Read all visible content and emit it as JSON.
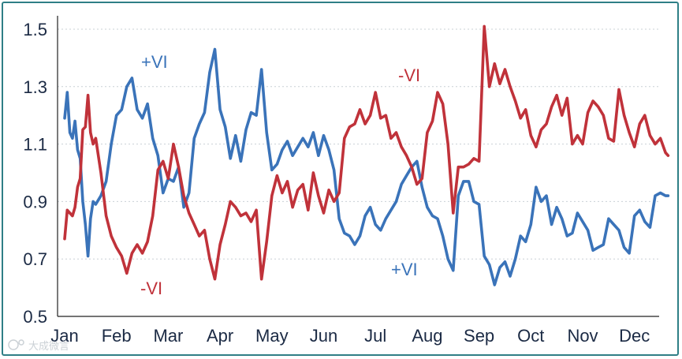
{
  "chart_data": {
    "type": "line",
    "title": "",
    "xlabel": "",
    "ylabel": "",
    "ylim": [
      0.5,
      1.5
    ],
    "yticks": [
      "1.5",
      "1.3",
      "1.1",
      "0.9",
      "0.7",
      "0.5"
    ],
    "ytick_values": [
      1.5,
      1.3,
      1.1,
      0.9,
      0.7,
      0.5
    ],
    "categories": [
      "Jan",
      "Feb",
      "Mar",
      "Apr",
      "May",
      "Jun",
      "Jul",
      "Aug",
      "Sep",
      "Oct",
      "Nov",
      "Dec"
    ],
    "grid": "horizontal dotted",
    "series": [
      {
        "name": "+VI",
        "color": "#3a73b9",
        "x": [
          0,
          0.05,
          0.1,
          0.15,
          0.2,
          0.25,
          0.3,
          0.35,
          0.4,
          0.45,
          0.5,
          0.55,
          0.6,
          0.7,
          0.8,
          0.9,
          1.0,
          1.1,
          1.2,
          1.3,
          1.4,
          1.5,
          1.6,
          1.7,
          1.8,
          1.9,
          2.0,
          2.1,
          2.2,
          2.3,
          2.4,
          2.5,
          2.6,
          2.7,
          2.8,
          2.9,
          3.0,
          3.1,
          3.2,
          3.3,
          3.4,
          3.5,
          3.6,
          3.7,
          3.8,
          3.9,
          4.0,
          4.1,
          4.2,
          4.3,
          4.4,
          4.5,
          4.6,
          4.7,
          4.8,
          4.9,
          5.0,
          5.1,
          5.2,
          5.3,
          5.4,
          5.5,
          5.6,
          5.7,
          5.8,
          5.9,
          6.0,
          6.1,
          6.2,
          6.3,
          6.4,
          6.5,
          6.6,
          6.7,
          6.8,
          6.9,
          7.0,
          7.1,
          7.2,
          7.3,
          7.4,
          7.5,
          7.6,
          7.7,
          7.8,
          7.9,
          8.0,
          8.1,
          8.2,
          8.3,
          8.4,
          8.5,
          8.6,
          8.7,
          8.8,
          8.9,
          9.0,
          9.1,
          9.2,
          9.3,
          9.4,
          9.5,
          9.6,
          9.7,
          9.8,
          9.9,
          10.0,
          10.1,
          10.2,
          10.3,
          10.4,
          10.5,
          10.6,
          10.7,
          10.8,
          10.9,
          11.0,
          11.1,
          11.2,
          11.3,
          11.4,
          11.5,
          11.6,
          11.65
        ],
        "values": [
          1.19,
          1.28,
          1.14,
          1.12,
          1.18,
          1.08,
          1.05,
          0.9,
          0.82,
          0.71,
          0.84,
          0.9,
          0.89,
          0.92,
          0.97,
          1.1,
          1.2,
          1.22,
          1.3,
          1.33,
          1.22,
          1.19,
          1.24,
          1.12,
          1.06,
          0.93,
          0.98,
          0.97,
          1.02,
          0.88,
          0.93,
          1.12,
          1.17,
          1.21,
          1.35,
          1.43,
          1.22,
          1.16,
          1.05,
          1.13,
          1.04,
          1.15,
          1.21,
          1.2,
          1.36,
          1.14,
          1.01,
          1.03,
          1.08,
          1.11,
          1.06,
          1.09,
          1.12,
          1.09,
          1.14,
          1.06,
          1.13,
          1.08,
          1.01,
          0.84,
          0.79,
          0.78,
          0.75,
          0.78,
          0.85,
          0.88,
          0.82,
          0.8,
          0.84,
          0.87,
          0.9,
          0.96,
          0.99,
          1.02,
          1.04,
          0.95,
          0.88,
          0.85,
          0.84,
          0.78,
          0.7,
          0.66,
          0.92,
          0.97,
          0.97,
          0.9,
          0.89,
          0.71,
          0.68,
          0.61,
          0.67,
          0.69,
          0.64,
          0.7,
          0.78,
          0.76,
          0.82,
          0.95,
          0.9,
          0.92,
          0.82,
          0.88,
          0.84,
          0.78,
          0.79,
          0.86,
          0.83,
          0.8,
          0.73,
          0.74,
          0.75,
          0.84,
          0.82,
          0.8,
          0.74,
          0.72,
          0.85,
          0.87,
          0.83,
          0.81,
          0.92,
          0.93,
          0.92,
          0.92
        ],
        "label_positions": [
          "Mar peak",
          "Aug trough"
        ]
      },
      {
        "name": "-VI",
        "color": "#c0323a",
        "x": [
          0,
          0.05,
          0.1,
          0.15,
          0.2,
          0.25,
          0.3,
          0.35,
          0.4,
          0.45,
          0.5,
          0.55,
          0.6,
          0.7,
          0.8,
          0.9,
          1.0,
          1.1,
          1.2,
          1.3,
          1.4,
          1.5,
          1.6,
          1.7,
          1.8,
          1.9,
          2.0,
          2.1,
          2.2,
          2.3,
          2.4,
          2.5,
          2.6,
          2.7,
          2.8,
          2.9,
          3.0,
          3.1,
          3.2,
          3.3,
          3.4,
          3.5,
          3.6,
          3.7,
          3.8,
          3.9,
          4.0,
          4.1,
          4.2,
          4.3,
          4.4,
          4.5,
          4.6,
          4.7,
          4.8,
          4.9,
          5.0,
          5.1,
          5.2,
          5.3,
          5.4,
          5.5,
          5.6,
          5.7,
          5.8,
          5.9,
          6.0,
          6.1,
          6.2,
          6.3,
          6.4,
          6.5,
          6.6,
          6.7,
          6.8,
          6.9,
          7.0,
          7.1,
          7.2,
          7.3,
          7.4,
          7.5,
          7.6,
          7.7,
          7.8,
          7.9,
          8.0,
          8.1,
          8.2,
          8.3,
          8.4,
          8.5,
          8.6,
          8.7,
          8.8,
          8.9,
          9.0,
          9.1,
          9.2,
          9.3,
          9.4,
          9.5,
          9.6,
          9.7,
          9.8,
          9.9,
          10.0,
          10.1,
          10.2,
          10.3,
          10.4,
          10.5,
          10.6,
          10.7,
          10.8,
          10.9,
          11.0,
          11.1,
          11.2,
          11.3,
          11.4,
          11.5,
          11.6,
          11.65
        ],
        "values": [
          0.77,
          0.87,
          0.86,
          0.85,
          0.88,
          0.95,
          0.98,
          1.15,
          1.16,
          1.27,
          1.14,
          1.1,
          1.12,
          1.0,
          0.85,
          0.78,
          0.74,
          0.71,
          0.65,
          0.72,
          0.75,
          0.72,
          0.76,
          0.85,
          1.01,
          1.04,
          0.98,
          1.1,
          1.02,
          0.92,
          0.86,
          0.82,
          0.78,
          0.8,
          0.7,
          0.63,
          0.75,
          0.82,
          0.9,
          0.88,
          0.85,
          0.86,
          0.83,
          0.87,
          0.63,
          0.76,
          0.92,
          0.99,
          0.93,
          0.97,
          0.88,
          0.94,
          0.96,
          0.87,
          1.0,
          0.92,
          0.86,
          0.94,
          0.9,
          0.93,
          1.12,
          1.16,
          1.17,
          1.22,
          1.17,
          1.2,
          1.28,
          1.19,
          1.2,
          1.12,
          1.14,
          1.09,
          1.06,
          1.02,
          0.96,
          0.98,
          1.14,
          1.18,
          1.28,
          1.24,
          1.1,
          0.86,
          1.02,
          1.02,
          1.03,
          1.05,
          1.04,
          1.51,
          1.3,
          1.38,
          1.31,
          1.36,
          1.3,
          1.25,
          1.19,
          1.22,
          1.13,
          1.09,
          1.15,
          1.17,
          1.23,
          1.27,
          1.2,
          1.26,
          1.1,
          1.13,
          1.1,
          1.21,
          1.25,
          1.23,
          1.2,
          1.12,
          1.11,
          1.29,
          1.2,
          1.14,
          1.09,
          1.17,
          1.2,
          1.13,
          1.1,
          1.12,
          1.07,
          1.06
        ],
        "label_positions": [
          "Mar trough",
          "Aug peak"
        ]
      }
    ],
    "annotations": [
      {
        "text": "+VI",
        "series": "+VI"
      },
      {
        "text": "-VI",
        "series": "-VI"
      },
      {
        "text": "-VI",
        "series": "-VI"
      },
      {
        "text": "+VI",
        "series": "+VI"
      }
    ]
  },
  "watermark": "大成微言",
  "watermark_icon": "camera-logo-icon"
}
